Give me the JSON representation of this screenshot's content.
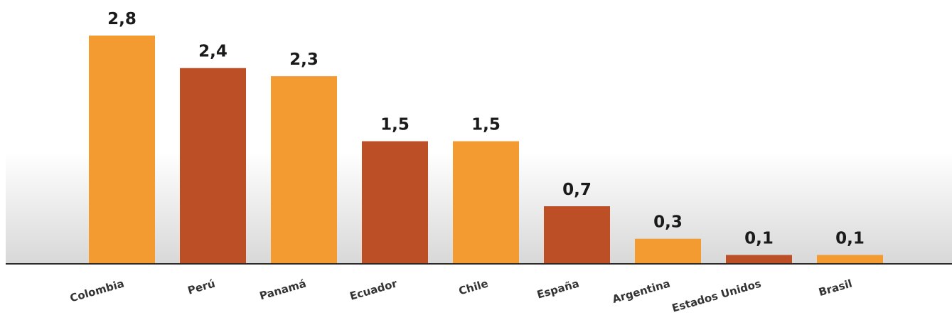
{
  "chart_data": {
    "type": "bar",
    "categories": [
      "Colombia",
      "Perú",
      "Panamá",
      "Ecuador",
      "Chile",
      "España",
      "Argentina",
      "Estados Unidos",
      "Brasil"
    ],
    "values": [
      2.8,
      2.4,
      2.3,
      1.5,
      1.5,
      0.7,
      0.3,
      0.1,
      0.1
    ],
    "value_labels": [
      "2,8",
      "2,4",
      "2,3",
      "1,5",
      "1,5",
      "0,7",
      "0,3",
      "0,1",
      "0,1"
    ],
    "bar_colors": [
      "#F39A31",
      "#BC4F25",
      "#F39A31",
      "#BC4F25",
      "#F39A31",
      "#BC4F25",
      "#F39A31",
      "#BC4F25",
      "#F39A31"
    ],
    "title": "",
    "xlabel": "",
    "ylabel": "",
    "ylim": [
      0,
      2.8
    ],
    "grid": false,
    "legend": "none"
  },
  "colors": {
    "orange": "#F39A31",
    "rust": "#BC4F25",
    "baseline": "#2b2b2b",
    "background_gradient_top": "#ffffff",
    "background_gradient_bottom": "#dcdcdc"
  }
}
